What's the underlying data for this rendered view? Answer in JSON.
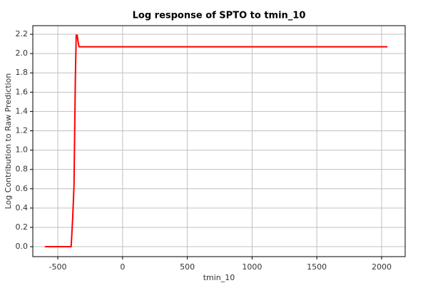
{
  "chart_data": {
    "type": "line",
    "title": "Log response of SPTO to tmin_10",
    "x_label": "tmin_10",
    "y_label": "Log Contribution to Raw Prediction",
    "x": [
      -600,
      -397,
      -385,
      -375,
      -365,
      -358,
      -350,
      -343,
      -336,
      -330,
      -300,
      0,
      500,
      1000,
      1500,
      2045
    ],
    "series": [
      {
        "name": "SPTO",
        "color": "#ff0000",
        "values": [
          0,
          0,
          0.3,
          0.63,
          1.7,
          2.19,
          2.19,
          2.12,
          2.07,
          2.07,
          2.07,
          2.07,
          2.07,
          2.07,
          2.07,
          2.07
        ]
      }
    ],
    "xlim": [
      -693,
      2182
    ],
    "ylim": [
      -0.103,
      2.289
    ],
    "xticks": [
      -500,
      0,
      500,
      1000,
      1500,
      2000
    ],
    "yticks": [
      {
        "value": 0,
        "label": "0.0"
      },
      0.2,
      0.4,
      0.6,
      0.8,
      {
        "value": 1,
        "label": "1.0"
      },
      1.2,
      1.4,
      1.6,
      1.8,
      {
        "value": 2,
        "label": "2.0"
      },
      2.2
    ],
    "grid": true
  }
}
